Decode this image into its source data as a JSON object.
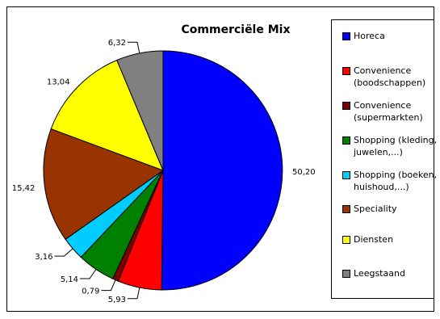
{
  "chart_data": {
    "type": "pie",
    "title": "Commerciële Mix",
    "slices": [
      {
        "label": "Horeca",
        "value": 50.2,
        "value_label": "50,20",
        "color": "#0000FF"
      },
      {
        "label": "Convenience (boodschappen)",
        "value": 5.93,
        "value_label": "5,93",
        "color": "#FF0000"
      },
      {
        "label": "Convenience (supermarkten)",
        "value": 0.79,
        "value_label": "0,79",
        "color": "#800000"
      },
      {
        "label": "Shopping (kleding, juwelen,...)",
        "value": 5.14,
        "value_label": "5,14",
        "color": "#008000"
      },
      {
        "label": "Shopping (boeken, huishoud,...)",
        "value": 3.16,
        "value_label": "3,16",
        "color": "#00CCFF"
      },
      {
        "label": "Speciality",
        "value": 15.42,
        "value_label": "15,42",
        "color": "#993300"
      },
      {
        "label": "Diensten",
        "value": 13.04,
        "value_label": "13,04",
        "color": "#FFFF00"
      },
      {
        "label": "Leegstaand",
        "value": 6.32,
        "value_label": "6,32",
        "color": "#808080"
      }
    ],
    "legend_position": "right"
  },
  "legend": {
    "items": [
      {
        "label": "Horeca",
        "color": "#0000FF"
      },
      {
        "label": "Convenience\n(boodschappen)",
        "color": "#FF0000"
      },
      {
        "label": "Convenience\n(supermarkten)",
        "color": "#800000"
      },
      {
        "label": "Shopping (kleding,\njuwelen,...)",
        "color": "#008000"
      },
      {
        "label": "Shopping (boeken,\nhuishoud,...)",
        "color": "#00CCFF"
      },
      {
        "label": "Speciality",
        "color": "#993300"
      },
      {
        "label": "Diensten",
        "color": "#FFFF00"
      },
      {
        "label": "Leegstaand",
        "color": "#808080"
      }
    ]
  }
}
